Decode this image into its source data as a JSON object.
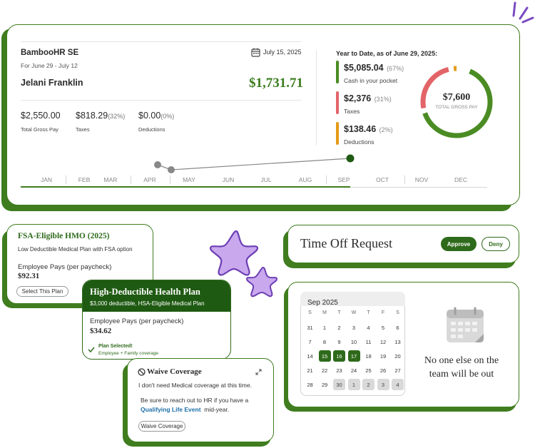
{
  "payslip": {
    "company": "BambooHR SE",
    "period": "For June 29 - July 12",
    "date": "July 15, 2025",
    "employee": "Jelani Franklin",
    "net_pay": "$1,731.71",
    "stats": [
      {
        "value": "$2,550.00",
        "pct": "",
        "label": "Total Gross Pay"
      },
      {
        "value": "$818.29",
        "pct": "(32%)",
        "label": "Taxes"
      },
      {
        "value": "$0.00",
        "pct": "(0%)",
        "label": "Deductions"
      }
    ],
    "ytd_title": "Year to Date, as of June 29, 2025:",
    "ytd": [
      {
        "value": "$5,085.04",
        "pct": "(67%)",
        "label": "Cash in your pocket",
        "color": "#4a8c23"
      },
      {
        "value": "$2,376",
        "pct": "(31%)",
        "label": "Taxes",
        "color": "#e36468"
      },
      {
        "value": "$138.46",
        "pct": "(2%)",
        "label": "Deductions",
        "color": "#e59a17"
      }
    ],
    "donut": {
      "total": "$7,600",
      "label": "TOTAL GROSS PAY",
      "fractions": [
        0.67,
        0.31,
        0.02
      ]
    },
    "months": [
      "JAN",
      "FEB",
      "MAR",
      "APR",
      "MAY",
      "JUN",
      "JUL",
      "AUG",
      "SEP",
      "OCT",
      "NOV",
      "DEC"
    ]
  },
  "fsa_card": {
    "title": "FSA-Eligible HMO (2025)",
    "subtitle": "Low Deductible Medical Plan with FSA option",
    "pays_label": "Employee Pays (per paycheck)",
    "amount": "$92.31",
    "button": "Select This Plan"
  },
  "hdhp_card": {
    "title": "High-Deductible Health Plan",
    "subtitle": "$3,000 deductible, HSA-Eligible Medical Plan",
    "pays_label": "Employee Pays (per paycheck)",
    "amount": "$34.62",
    "selected": "Plan Selected!",
    "coverage": "Employee + Family coverage"
  },
  "waive_card": {
    "title": "Waive Coverage",
    "line1": "I don't need Medical coverage at this time.",
    "line2": "Be sure to reach out to HR if you have a",
    "link": "Qualifying Life Event",
    "line3": "mid-year.",
    "button": "Waive Coverage"
  },
  "time_off": {
    "title": "Time Off Request",
    "approve": "Approve",
    "deny": "Deny"
  },
  "calendar": {
    "month": "Sep 2025",
    "dow": [
      "S",
      "M",
      "T",
      "W",
      "T",
      "F",
      "S"
    ],
    "weeks": [
      [
        "31",
        "1",
        "2",
        "3",
        "4",
        "5",
        "6"
      ],
      [
        "7",
        "8",
        "9",
        "10",
        "11",
        "12",
        "13"
      ],
      [
        "14",
        "15",
        "16",
        "17",
        "18",
        "19",
        "20"
      ],
      [
        "21",
        "22",
        "23",
        "24",
        "25",
        "26",
        "27"
      ],
      [
        "28",
        "29",
        "30",
        "1",
        "2",
        "3",
        "4"
      ]
    ],
    "message_line1": "No one else on the",
    "message_line2": "team will be out"
  }
}
